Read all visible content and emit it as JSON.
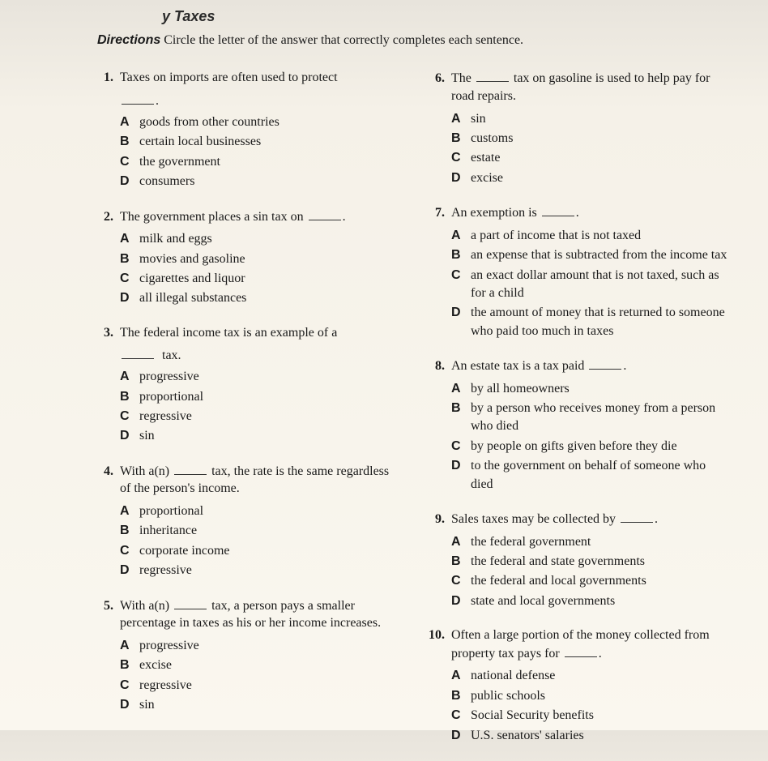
{
  "header_fragment": "y Taxes",
  "directions_label": "Directions",
  "directions_text": "Circle the letter of the answer that correctly completes each sentence.",
  "questions": {
    "left": [
      {
        "num": "1.",
        "text_before": "Taxes on imports are often used to protect",
        "has_trailing_blank_below": true,
        "trailing_punct": ".",
        "options": [
          {
            "letter": "A",
            "text": "goods from other countries"
          },
          {
            "letter": "B",
            "text": "certain local businesses"
          },
          {
            "letter": "C",
            "text": "the government"
          },
          {
            "letter": "D",
            "text": "consumers"
          }
        ]
      },
      {
        "num": "2.",
        "text_before": "The government places a sin tax on",
        "has_inline_blank_after": true,
        "trailing_punct": ".",
        "options": [
          {
            "letter": "A",
            "text": "milk and eggs"
          },
          {
            "letter": "B",
            "text": "movies and gasoline"
          },
          {
            "letter": "C",
            "text": "cigarettes and liquor"
          },
          {
            "letter": "D",
            "text": "all illegal substances"
          }
        ]
      },
      {
        "num": "3.",
        "text_before": "The federal income tax is an example of a",
        "has_trailing_blank_below": true,
        "trailing_suffix": " tax.",
        "options": [
          {
            "letter": "A",
            "text": "progressive"
          },
          {
            "letter": "B",
            "text": "proportional"
          },
          {
            "letter": "C",
            "text": "regressive"
          },
          {
            "letter": "D",
            "text": "sin"
          }
        ]
      },
      {
        "num": "4.",
        "text_before": "With a(n)",
        "has_inline_blank_mid": true,
        "text_after": " tax, the rate is the same regardless of the person's income.",
        "options": [
          {
            "letter": "A",
            "text": "proportional"
          },
          {
            "letter": "B",
            "text": "inheritance"
          },
          {
            "letter": "C",
            "text": "corporate income"
          },
          {
            "letter": "D",
            "text": "regressive"
          }
        ]
      },
      {
        "num": "5.",
        "text_before": "With a(n)",
        "has_inline_blank_mid": true,
        "text_after": " tax, a person pays a smaller percentage in taxes as his or her income increases.",
        "options": [
          {
            "letter": "A",
            "text": "progressive"
          },
          {
            "letter": "B",
            "text": "excise"
          },
          {
            "letter": "C",
            "text": "regressive"
          },
          {
            "letter": "D",
            "text": "sin"
          }
        ]
      }
    ],
    "right": [
      {
        "num": "6.",
        "text_before": "The",
        "has_inline_blank_mid": true,
        "text_after": " tax on gasoline is used to help pay for road repairs.",
        "options": [
          {
            "letter": "A",
            "text": "sin"
          },
          {
            "letter": "B",
            "text": "customs"
          },
          {
            "letter": "C",
            "text": "estate"
          },
          {
            "letter": "D",
            "text": "excise"
          }
        ]
      },
      {
        "num": "7.",
        "text_before": "An exemption is",
        "has_inline_blank_after": true,
        "trailing_punct": ".",
        "options": [
          {
            "letter": "A",
            "text": "a part of income that is not taxed"
          },
          {
            "letter": "B",
            "text": "an expense that is subtracted from the income tax"
          },
          {
            "letter": "C",
            "text": "an exact dollar amount that is not taxed, such as for a child"
          },
          {
            "letter": "D",
            "text": "the amount of money that is returned to someone who paid too much in taxes"
          }
        ]
      },
      {
        "num": "8.",
        "text_before": "An estate tax is a tax paid",
        "has_inline_blank_after": true,
        "trailing_punct": ".",
        "options": [
          {
            "letter": "A",
            "text": "by all homeowners"
          },
          {
            "letter": "B",
            "text": "by a person who receives money from a person who died"
          },
          {
            "letter": "C",
            "text": "by people on gifts given before they die"
          },
          {
            "letter": "D",
            "text": "to the government on behalf of someone who died"
          }
        ]
      },
      {
        "num": "9.",
        "text_before": "Sales taxes may be collected by",
        "has_inline_blank_after": true,
        "trailing_punct": ".",
        "options": [
          {
            "letter": "A",
            "text": "the federal government"
          },
          {
            "letter": "B",
            "text": "the federal and state governments"
          },
          {
            "letter": "C",
            "text": "the federal and local governments"
          },
          {
            "letter": "D",
            "text": "state and local governments"
          }
        ]
      },
      {
        "num": "10.",
        "text_before": "Often a large portion of the money collected from property tax pays for",
        "has_inline_blank_after": true,
        "trailing_punct": ".",
        "options": [
          {
            "letter": "A",
            "text": "national defense"
          },
          {
            "letter": "B",
            "text": "public schools"
          },
          {
            "letter": "C",
            "text": "Social Security benefits"
          },
          {
            "letter": "D",
            "text": "U.S. senators' salaries"
          }
        ]
      }
    ]
  }
}
